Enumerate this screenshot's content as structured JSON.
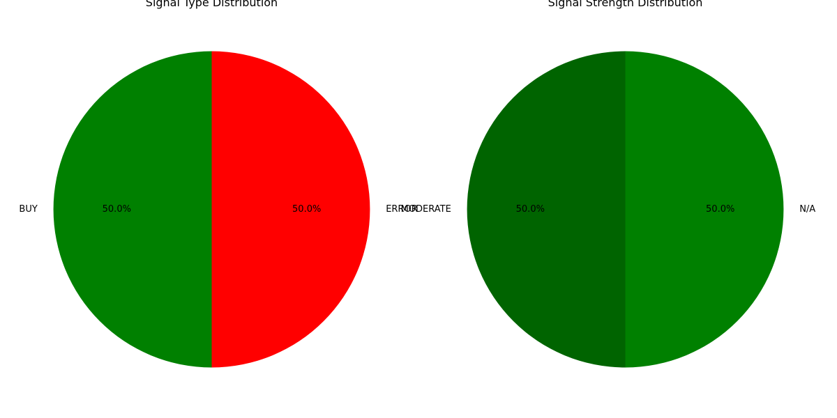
{
  "chart_data": [
    {
      "type": "pie",
      "title": "Signal Type Distribution",
      "slices": [
        {
          "label": "BUY",
          "value": 50.0,
          "pct_label": "50.0%",
          "color": "#008000"
        },
        {
          "label": "ERROR",
          "value": 50.0,
          "pct_label": "50.0%",
          "color": "#ff0000"
        }
      ]
    },
    {
      "type": "pie",
      "title": "Signal Strength Distribution",
      "slices": [
        {
          "label": "MODERATE",
          "value": 50.0,
          "pct_label": "50.0%",
          "color": "#006400"
        },
        {
          "label": "N/A",
          "value": 50.0,
          "pct_label": "50.0%",
          "color": "#008000"
        }
      ]
    }
  ]
}
